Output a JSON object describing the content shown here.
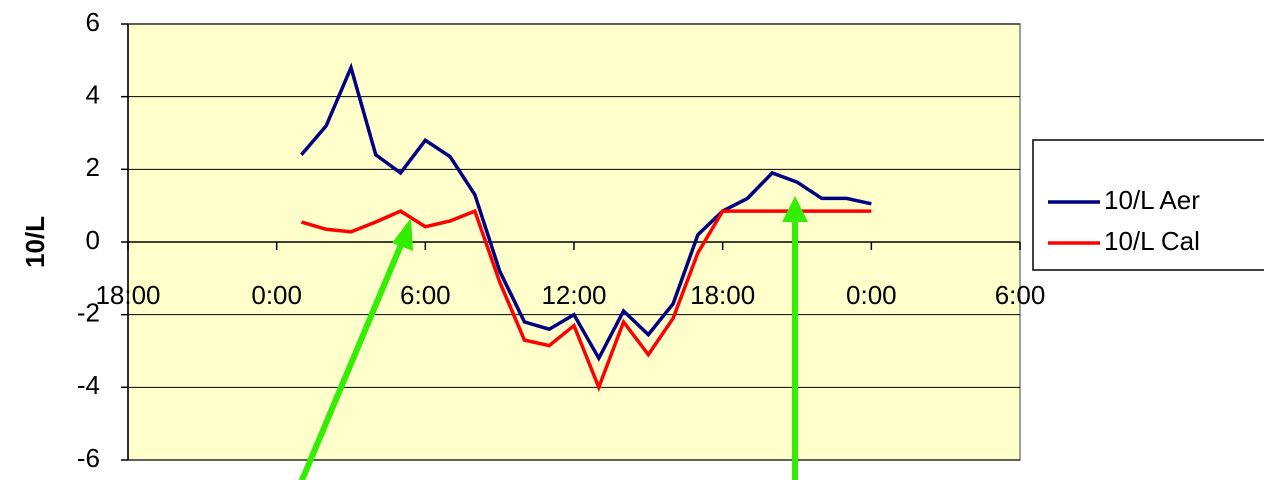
{
  "chart_data": {
    "type": "line",
    "y_label": "10/L",
    "x": [
      1,
      2,
      3,
      4,
      5,
      6,
      7,
      8,
      9,
      10,
      11,
      12,
      13,
      14,
      15,
      16,
      17,
      18,
      19,
      20,
      21,
      22,
      23,
      24
    ],
    "series": [
      {
        "name": "10/L Aer",
        "color": "#000080",
        "values": [
          2.4,
          3.2,
          4.8,
          2.4,
          1.9,
          2.8,
          2.35,
          1.3,
          -0.8,
          -2.2,
          -2.4,
          -2.0,
          -3.2,
          -1.9,
          -2.55,
          -1.7,
          0.2,
          0.85,
          1.2,
          1.9,
          1.65,
          1.2,
          1.2,
          1.05
        ]
      },
      {
        "name": "10/L Cal",
        "color": "#ff0000",
        "values": [
          0.55,
          0.35,
          0.28,
          0.55,
          0.85,
          0.42,
          0.58,
          0.85,
          -1.1,
          -2.7,
          -2.85,
          -2.3,
          -4.0,
          -2.2,
          -3.1,
          -2.1,
          -0.3,
          0.85,
          0.85,
          0.85,
          0.85,
          0.85,
          0.85,
          0.85
        ]
      }
    ],
    "xlim": [
      -6,
      30
    ],
    "xticks": [
      {
        "value": -6,
        "label": "18:00"
      },
      {
        "value": 0,
        "label": "0:00"
      },
      {
        "value": 6,
        "label": "6:00"
      },
      {
        "value": 12,
        "label": "12:00"
      },
      {
        "value": 18,
        "label": "18:00"
      },
      {
        "value": 24,
        "label": "0:00"
      },
      {
        "value": 30,
        "label": "6:00"
      }
    ],
    "ylim": [
      -6,
      6
    ],
    "yticks": [
      -6,
      -4,
      -2,
      0,
      2,
      4,
      6
    ],
    "grid": true,
    "legend": "right"
  }
}
